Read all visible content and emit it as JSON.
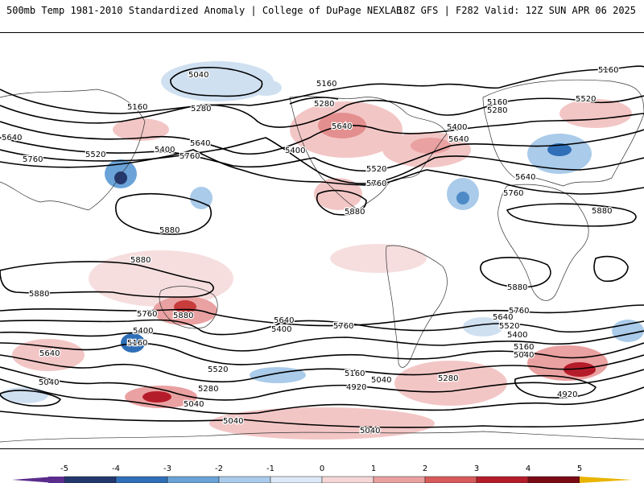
{
  "header": {
    "title_left": "500mb Temp 1981-2010 Standardized Anomaly | College of DuPage NEXLAB",
    "title_right": "18Z GFS | F282 Valid: 12Z SUN APR 06 2025"
  },
  "map": {
    "projection": "cylindrical equidistant (global)",
    "field": "500mb standardized temperature anomaly (shaded)",
    "overlay": "500mb geopotential height contours"
  },
  "contour_labels": [
    {
      "id": "z5040-npac",
      "text": "5040"
    },
    {
      "id": "z5160-alaska",
      "text": "5160"
    },
    {
      "id": "z5280-alaska",
      "text": "5280"
    },
    {
      "id": "z5640-canada",
      "text": "5640"
    },
    {
      "id": "z5400-npac",
      "text": "5400"
    },
    {
      "id": "z5520-usa",
      "text": "5520"
    },
    {
      "id": "z5760-usa",
      "text": "5760"
    },
    {
      "id": "z5880-mexico",
      "text": "5880"
    },
    {
      "id": "z5400-usa",
      "text": "5400"
    },
    {
      "id": "z5640-atl",
      "text": "5640"
    },
    {
      "id": "z5160-atl",
      "text": "5160"
    },
    {
      "id": "z5280-atl",
      "text": "5280"
    },
    {
      "id": "z5160-scand",
      "text": "5160"
    },
    {
      "id": "z5520-euro",
      "text": "5520"
    },
    {
      "id": "z5640-africa",
      "text": "5640"
    },
    {
      "id": "z5760-africa",
      "text": "5760"
    },
    {
      "id": "z5880-africa",
      "text": "5880"
    },
    {
      "id": "z5880-satl",
      "text": "5880"
    },
    {
      "id": "z5160-asia",
      "text": "5160"
    },
    {
      "id": "z5280-asia",
      "text": "5280"
    },
    {
      "id": "z5400-asia",
      "text": "5400"
    },
    {
      "id": "z5640-asia",
      "text": "5640"
    },
    {
      "id": "z5760-asia",
      "text": "5760"
    },
    {
      "id": "z5520-asia",
      "text": "5520"
    },
    {
      "id": "z5640-west",
      "text": "5640"
    },
    {
      "id": "z5760-west",
      "text": "5760"
    },
    {
      "id": "z5880-wpac",
      "text": "5880"
    },
    {
      "id": "z5880-sio",
      "text": "5880"
    },
    {
      "id": "z5880-sindian",
      "text": "5880"
    },
    {
      "id": "z5880-austr",
      "text": "5880"
    },
    {
      "id": "z5760-austr",
      "text": "5760"
    },
    {
      "id": "z5400-spac-a",
      "text": "5400"
    },
    {
      "id": "z5160-spac-a",
      "text": "5160"
    },
    {
      "id": "z5640-spac",
      "text": "5640"
    },
    {
      "id": "z5400-spac-b",
      "text": "5400"
    },
    {
      "id": "z5760-spac",
      "text": "5760"
    },
    {
      "id": "z5520-spac",
      "text": "5520"
    },
    {
      "id": "z5640-sio",
      "text": "5640"
    },
    {
      "id": "z5040-sio",
      "text": "5040"
    },
    {
      "id": "z5280-spac",
      "text": "5280"
    },
    {
      "id": "z5040-spac-a",
      "text": "5040"
    },
    {
      "id": "z5160-spac-b",
      "text": "5160"
    },
    {
      "id": "z5040-spac-b",
      "text": "5040"
    },
    {
      "id": "z4920-spac",
      "text": "4920"
    },
    {
      "id": "z5280-satl",
      "text": "5280"
    },
    {
      "id": "z5040-ant-a",
      "text": "5040"
    },
    {
      "id": "z5040-ant-b",
      "text": "5040"
    },
    {
      "id": "z5760-satl",
      "text": "5760"
    },
    {
      "id": "z5640-satl",
      "text": "5640"
    },
    {
      "id": "z5520-satl",
      "text": "5520"
    },
    {
      "id": "z5400-satl",
      "text": "5400"
    },
    {
      "id": "z5160-satl",
      "text": "5160"
    },
    {
      "id": "z5040-satl",
      "text": "5040"
    },
    {
      "id": "z4920-satl",
      "text": "4920"
    }
  ],
  "colorbar": {
    "ticks": [
      "-5",
      "-4",
      "-3",
      "-2",
      "-1",
      "0",
      "1",
      "2",
      "3",
      "4",
      "5"
    ],
    "colors": [
      "#5a2d8c",
      "#24386e",
      "#2f6fb8",
      "#6aa3d8",
      "#aacbea",
      "#dde9f6",
      "#f4d6d6",
      "#eaa1a1",
      "#d75a5a",
      "#b51c2a",
      "#7a0a14",
      "#e8b400"
    ]
  }
}
